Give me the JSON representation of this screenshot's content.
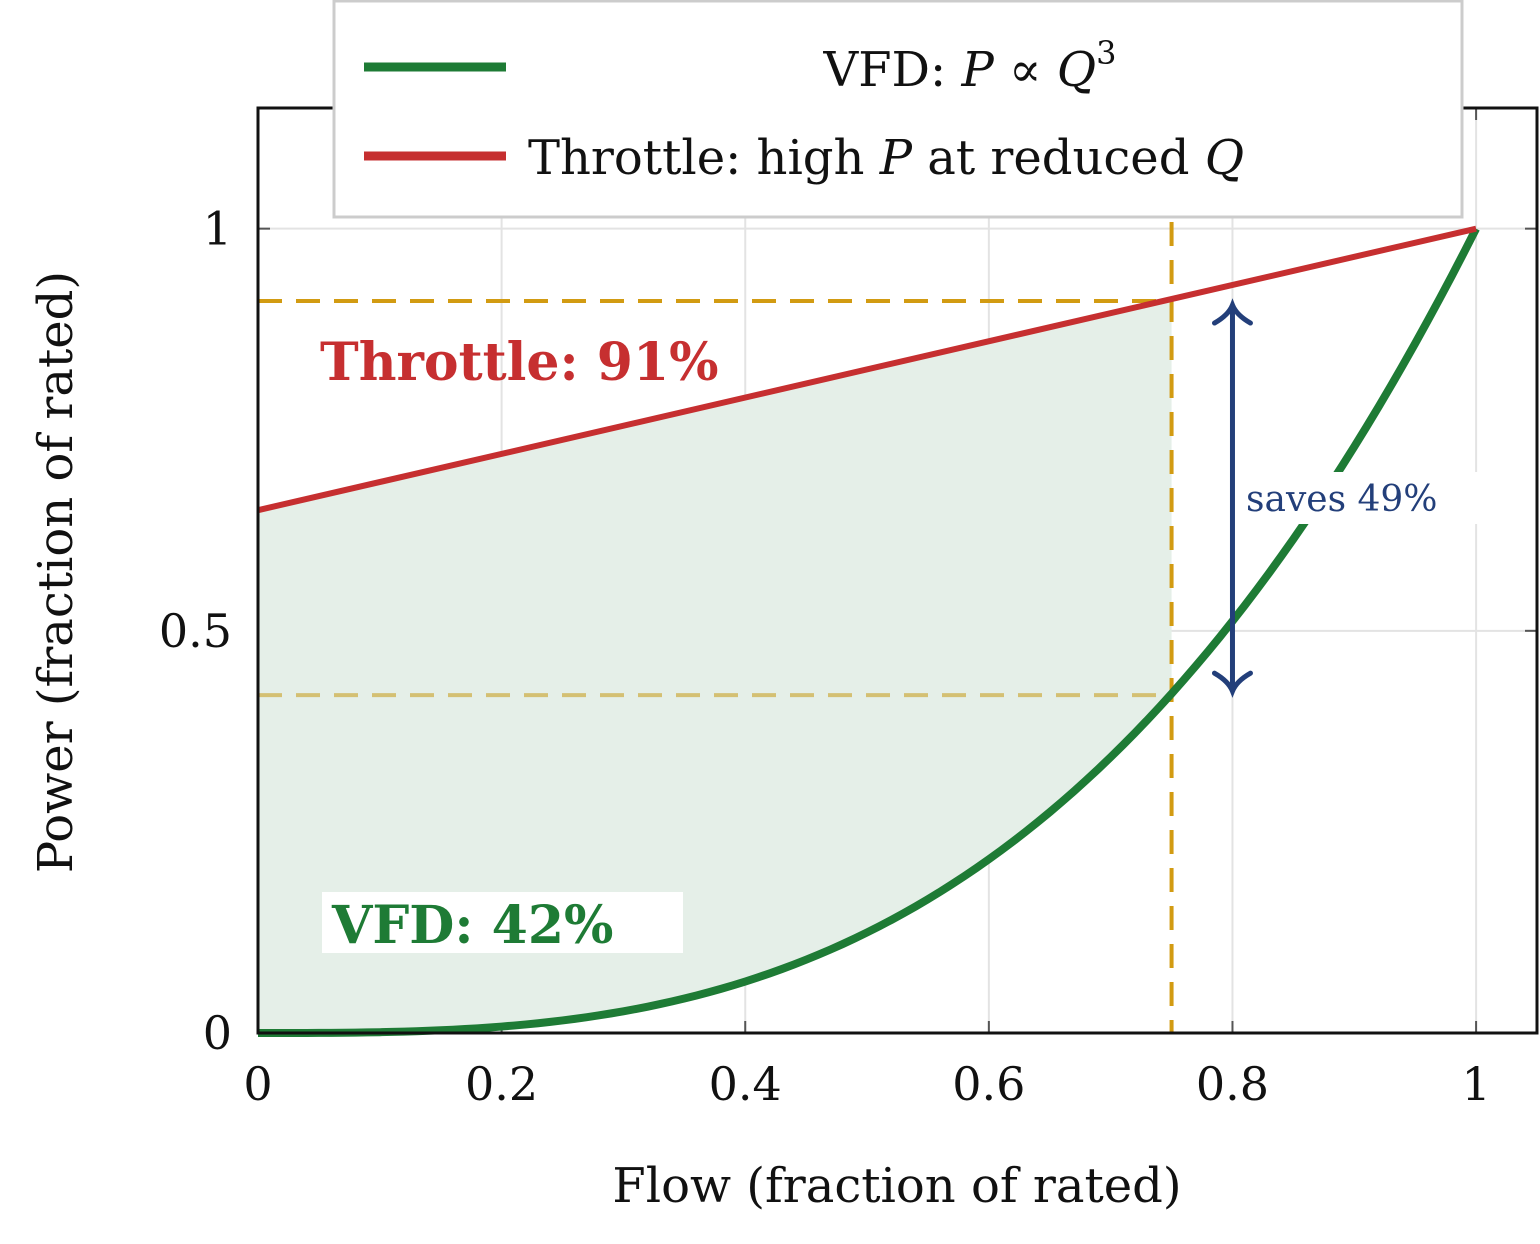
{
  "chart_data": {
    "type": "line",
    "xlabel": "Flow (fraction of rated)",
    "ylabel": "Power (fraction of rated)",
    "xlim": [
      0,
      1.05
    ],
    "ylim": [
      0,
      1.15
    ],
    "grid": true,
    "legend_placement": "top",
    "xticks": [
      0,
      0.2,
      0.4,
      0.6,
      0.8,
      1
    ],
    "xtick_labels": [
      "0",
      "0.2",
      "0.4",
      "0.6",
      "0.8",
      "1"
    ],
    "yticks": [
      0,
      0.5,
      1
    ],
    "ytick_labels": [
      "0",
      "0.5",
      "1"
    ],
    "series": [
      {
        "name": "VFD: P ∝ Q³",
        "legend_parts": [
          "VFD: ",
          "P",
          " ∝ ",
          "Q",
          "3"
        ],
        "formula": "P = Q^3",
        "x": [
          0,
          0.1,
          0.2,
          0.3,
          0.4,
          0.5,
          0.6,
          0.7,
          0.75,
          0.8,
          0.9,
          1.0
        ],
        "y": [
          0,
          0.001,
          0.008,
          0.027,
          0.064,
          0.125,
          0.216,
          0.343,
          0.422,
          0.512,
          0.729,
          1.0
        ],
        "color": "#1e7b35"
      },
      {
        "name": "Throttle: high P at reduced Q",
        "legend_parts": [
          "Throttle: high ",
          "P",
          " at reduced ",
          "Q"
        ],
        "formula": "P = 0.65 + 0.35 Q",
        "x": [
          0,
          1
        ],
        "y": [
          0.65,
          1.0
        ],
        "color": "#c62f30"
      }
    ],
    "operating_point": {
      "x": 0.75,
      "throttle": 0.91,
      "vfd": 0.42
    },
    "annotations": {
      "throttle_label": "Throttle: 91%",
      "vfd_label": "VFD: 42%",
      "savings_label": "saves 49%",
      "savings_arrow_x": 0.8
    },
    "colors": {
      "reference_lines": "#d29b12",
      "reference_line_low": "#d4c073",
      "fill": "#e5efe8",
      "arrow": "#233f7a"
    }
  }
}
